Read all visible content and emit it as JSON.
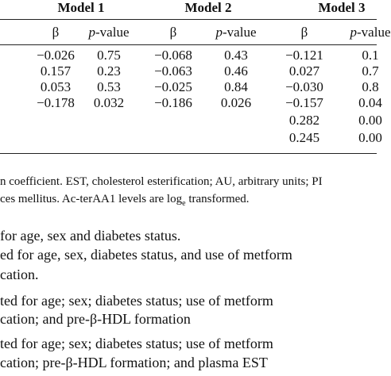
{
  "table": {
    "groups": [
      "Model 1",
      "Model 2",
      "Model 3"
    ],
    "subheader": [
      "β",
      "p-value",
      "β",
      "p-value",
      "β",
      "p-value"
    ],
    "rows": [
      [
        "−0.026",
        "0.75",
        "−0.068",
        "0.43",
        "−0.121",
        "0.1"
      ],
      [
        "0.157",
        "0.23",
        "−0.063",
        "0.46",
        "0.027",
        "0.7"
      ],
      [
        "0.053",
        "0.53",
        "−0.025",
        "0.84",
        "−0.030",
        "0.8"
      ],
      [
        "−0.178",
        "0.032",
        "−0.186",
        "0.026",
        "−0.157",
        "0.04"
      ],
      [
        null,
        null,
        null,
        null,
        "0.282",
        "0.00"
      ],
      [
        null,
        null,
        null,
        null,
        "0.245",
        "0.00"
      ]
    ]
  },
  "notes": {
    "line1": "n coefficient. EST, cholesterol esterification; AU, arbitrary units; PI",
    "line2": {
      "before": "ces mellitus. Ac-terAA1 levels are log",
      "sub": "e",
      "after": " transformed."
    }
  },
  "models": [
    " for age, sex and diabetes status.",
    "ed for age, sex, diabetes status, and use of metform",
    "cation.",
    "ted for age; sex; diabetes status; use of metform",
    "cation; and pre-β-HDL formation",
    "ted for age; sex; diabetes status; use of metform",
    "cation; pre-β-HDL formation; and plasma EST"
  ]
}
